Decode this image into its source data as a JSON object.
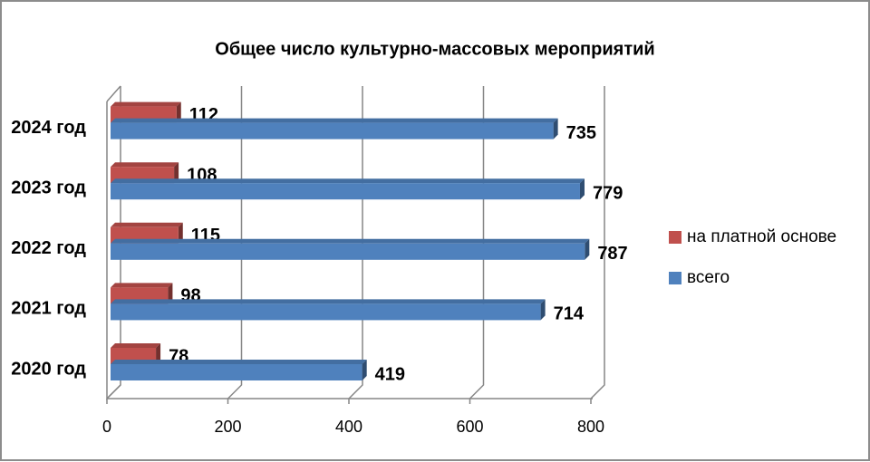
{
  "chart_data": {
    "type": "bar",
    "orientation": "horizontal",
    "three_d": true,
    "title": "Общее число культурно-массовых мероприятий",
    "categories": [
      "2020 год",
      "2021 год",
      "2022 год",
      "2023 год",
      "2024 год"
    ],
    "series": [
      {
        "name": "на платной основе",
        "color": "#c0504d",
        "values": [
          78,
          98,
          115,
          108,
          112
        ]
      },
      {
        "name": "всего",
        "color": "#4f81bd",
        "values": [
          419,
          714,
          787,
          779,
          735
        ]
      }
    ],
    "xlim": [
      0,
      800
    ],
    "xticks": [
      0,
      200,
      400,
      600,
      800
    ],
    "grid": true,
    "legend": "right"
  }
}
